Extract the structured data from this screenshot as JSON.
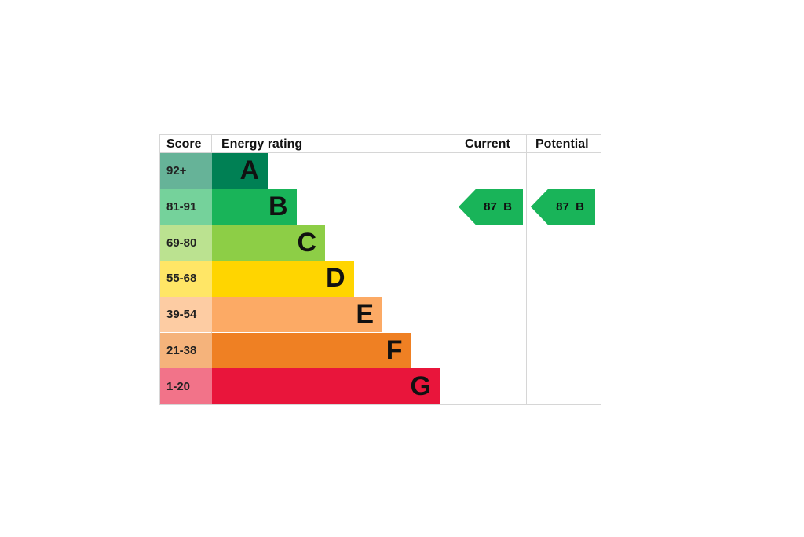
{
  "headers": {
    "score": "Score",
    "rating": "Energy rating",
    "current": "Current",
    "potential": "Potential"
  },
  "chart_data": {
    "type": "bar",
    "categories": [
      "A",
      "B",
      "C",
      "D",
      "E",
      "F",
      "G"
    ],
    "score_ranges": [
      "92+",
      "81-91",
      "69-80",
      "55-68",
      "39-54",
      "21-38",
      "1-20"
    ],
    "bands": [
      {
        "letter": "A",
        "range": "92+",
        "color": "#008054",
        "score_bg": "#66b398"
      },
      {
        "letter": "B",
        "range": "81-91",
        "color": "#19b459",
        "score_bg": "#75d29b"
      },
      {
        "letter": "C",
        "range": "69-80",
        "color": "#8dce46",
        "score_bg": "#bbe290"
      },
      {
        "letter": "D",
        "range": "55-68",
        "color": "#ffd500",
        "score_bg": "#ffe666"
      },
      {
        "letter": "E",
        "range": "39-54",
        "color": "#fcaa65",
        "score_bg": "#fdcca3"
      },
      {
        "letter": "F",
        "range": "21-38",
        "color": "#ef8023",
        "score_bg": "#f5b37b"
      },
      {
        "letter": "G",
        "range": "1-20",
        "color": "#e9153b",
        "score_bg": "#f27389"
      }
    ],
    "current": {
      "value": 87,
      "band": "B",
      "label": "87  B",
      "color": "#19b459"
    },
    "potential": {
      "value": 87,
      "band": "B",
      "label": "87  B",
      "color": "#19b459"
    }
  }
}
